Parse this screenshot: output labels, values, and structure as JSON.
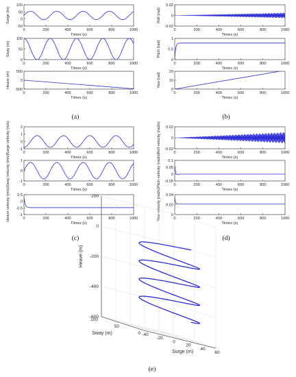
{
  "captions": {
    "a": "(a)",
    "b": "(b)",
    "c": "(c)",
    "d": "(d)",
    "e": "(e)"
  },
  "colors": {
    "line": "#2b2bd6",
    "axis": "#262626",
    "grid": "#d8d8d8"
  },
  "chart_data": [
    {
      "panel": "a",
      "type": "line",
      "xlabel": "Times (s)",
      "ylabel": "Surge (m)",
      "xlim": [
        0,
        1000
      ],
      "ylim": [
        -50,
        100
      ],
      "xticks": [
        0,
        200,
        400,
        600,
        800,
        1000
      ],
      "yticks": [
        -50,
        0,
        50,
        100
      ],
      "series": [
        {
          "kind": "sine",
          "mean": 25,
          "amp": 30,
          "period": 240,
          "phase": 0
        }
      ]
    },
    {
      "panel": "a",
      "type": "line",
      "xlabel": "Times (s)",
      "ylabel": "Sway (m)",
      "xlim": [
        0,
        1000
      ],
      "ylim": [
        0,
        100
      ],
      "xticks": [
        0,
        200,
        400,
        600,
        800,
        1000
      ],
      "yticks": [
        0,
        50,
        100
      ],
      "series": [
        {
          "kind": "sine",
          "mean": 50,
          "amp": 50,
          "period": 240,
          "phase": -60
        }
      ]
    },
    {
      "panel": "a",
      "type": "line",
      "xlabel": "Times (s)",
      "ylabel": "Heave (m)",
      "xlim": [
        0,
        1000
      ],
      "ylim": [
        -500,
        500
      ],
      "xticks": [
        0,
        200,
        400,
        600,
        800,
        1000
      ],
      "yticks": [
        -500,
        0,
        500
      ],
      "series": [
        {
          "kind": "points",
          "x": [
            0,
            1000
          ],
          "y": [
            0,
            -480
          ]
        }
      ]
    },
    {
      "panel": "b",
      "type": "line",
      "xlabel": "Times (s)",
      "ylabel": "Roll (rad)",
      "xlim": [
        0,
        1000
      ],
      "ylim": [
        -0.02,
        0.02
      ],
      "xticks": [
        0,
        200,
        400,
        600,
        800,
        1000
      ],
      "yticks": [
        -0.02,
        0,
        0.02
      ],
      "series": [
        {
          "kind": "growing-osc",
          "start": 0,
          "end": 0.005,
          "cycles": 140,
          "spike": 0.018
        }
      ]
    },
    {
      "panel": "b",
      "type": "line",
      "xlabel": "Times (s)",
      "ylabel": "Pitch (rad)",
      "xlim": [
        0,
        1000
      ],
      "ylim": [
        0,
        1
      ],
      "xticks": [
        0,
        200,
        400,
        600,
        800,
        1000
      ],
      "yticks": [
        0,
        0.5,
        1
      ],
      "series": [
        {
          "kind": "step",
          "from": 0,
          "to": 0.78,
          "peak": 0.9,
          "tau": 8
        }
      ]
    },
    {
      "panel": "b",
      "type": "line",
      "xlabel": "Times (s)",
      "ylabel": "Yaw (rad)",
      "xlim": [
        0,
        1000
      ],
      "ylim": [
        0,
        20
      ],
      "xticks": [
        0,
        200,
        400,
        600,
        800,
        1000
      ],
      "yticks": [
        0,
        10,
        20
      ],
      "series": [
        {
          "kind": "points",
          "x": [
            0,
            1000
          ],
          "y": [
            0,
            21
          ]
        }
      ]
    },
    {
      "panel": "c",
      "type": "line",
      "xlabel": "Times (s)",
      "ylabel": "Surge velocity (m/s)",
      "xlim": [
        0,
        1000
      ],
      "ylim": [
        -1,
        2
      ],
      "xticks": [
        0,
        200,
        400,
        600,
        800,
        1000
      ],
      "yticks": [
        -1,
        0,
        1,
        2
      ],
      "series": [
        {
          "kind": "sine",
          "mean": 0,
          "amp": 0.8,
          "period": 240,
          "phase": 60
        }
      ]
    },
    {
      "panel": "c",
      "type": "line",
      "xlabel": "Times (s)",
      "ylabel": "Sway velocity (m/s)",
      "xlim": [
        0,
        1000
      ],
      "ylim": [
        -1,
        1
      ],
      "xticks": [
        0,
        200,
        400,
        600,
        800,
        1000
      ],
      "yticks": [
        -1,
        0,
        1
      ],
      "series": [
        {
          "kind": "sine",
          "mean": 0,
          "amp": 0.8,
          "period": 240,
          "phase": 0
        }
      ]
    },
    {
      "panel": "c",
      "type": "line",
      "xlabel": "Times (s)",
      "ylabel": "Heave velocity (m/s)",
      "xlim": [
        0,
        1000
      ],
      "ylim": [
        -1,
        0.5
      ],
      "xticks": [
        0,
        200,
        400,
        600,
        800,
        1000
      ],
      "yticks": [
        -1,
        -0.5,
        0,
        0.5
      ],
      "series": [
        {
          "kind": "step",
          "from": 0.3,
          "to": -0.48,
          "peak": -0.48,
          "tau": 10
        }
      ]
    },
    {
      "panel": "d",
      "type": "line",
      "xlabel": "Times (s)",
      "ylabel": "Roll velocity (rad/s)",
      "xlim": [
        0,
        1000
      ],
      "ylim": [
        -0.02,
        0.02
      ],
      "xticks": [
        0,
        200,
        400,
        600,
        800,
        1000
      ],
      "yticks": [
        -0.02,
        0,
        0.02
      ],
      "series": [
        {
          "kind": "growing-osc",
          "start": 0,
          "end": 0.01,
          "cycles": 140,
          "spike": 0
        }
      ]
    },
    {
      "panel": "d",
      "type": "line",
      "xlabel": "Times (s)",
      "ylabel": "Pitch velocity (rad/s)",
      "xlim": [
        0,
        1000
      ],
      "ylim": [
        -0.05,
        0.1
      ],
      "xticks": [
        0,
        200,
        400,
        600,
        800,
        1000
      ],
      "yticks": [
        -0.05,
        0,
        0.05,
        0.1
      ],
      "series": [
        {
          "kind": "decay",
          "peak": 0.06,
          "settle": 0,
          "tau": 8
        }
      ]
    },
    {
      "panel": "d",
      "type": "line",
      "xlabel": "Times (s)",
      "ylabel": "Yaw velocity (rad/s)",
      "xlim": [
        0,
        1000
      ],
      "ylim": [
        0,
        0.04
      ],
      "xticks": [
        0,
        200,
        400,
        600,
        800,
        1000
      ],
      "yticks": [
        0,
        0.02,
        0.04
      ],
      "series": [
        {
          "kind": "step",
          "from": 0.035,
          "to": 0.021,
          "peak": 0.021,
          "tau": 6
        }
      ]
    },
    {
      "panel": "e",
      "type": "line3d",
      "xlabel": "Surge (m)",
      "ylabel": "Sway (m)",
      "zlabel": "Heave (m)",
      "xlim": [
        -40,
        60
      ],
      "ylim": [
        0,
        100
      ],
      "zlim": [
        -600,
        200
      ],
      "xticks": [
        -40,
        -20,
        0,
        20,
        40,
        60
      ],
      "yticks": [
        0,
        50,
        100
      ],
      "zticks": [
        -600,
        -400,
        -200,
        0,
        200
      ],
      "grid": true,
      "series": [
        {
          "kind": "helix",
          "cx": 25,
          "cy": 50,
          "rx": 30,
          "ry": 50,
          "z0": 0,
          "z1": -480,
          "turns": 4
        }
      ]
    }
  ]
}
